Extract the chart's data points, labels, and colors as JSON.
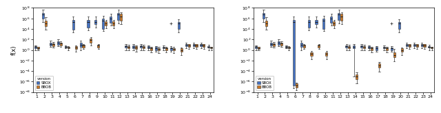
{
  "sbox_color": "#4472C4",
  "bbob_color": "#CC7722",
  "ylabel": "f(x)",
  "n_funcs": 24,
  "left_panel": {
    "sbox": {
      "med": [
        4,
        5000000.0,
        15,
        25,
        4,
        200000.0,
        10,
        200000.0,
        200000.0,
        400000.0,
        800000.0,
        5000000.0,
        5,
        4,
        5,
        3,
        2,
        3,
        2,
        100000.0,
        10,
        10,
        10,
        4
      ],
      "q1": [
        2,
        800000.0,
        8,
        10,
        3,
        8000.0,
        4,
        20000.0,
        80000.0,
        10000.0,
        150000.0,
        500000.0,
        3,
        2,
        3,
        2,
        1,
        2,
        1,
        10000.0,
        5,
        5,
        5,
        3
      ],
      "q3": [
        6,
        10000000.0,
        25,
        50,
        5,
        500000.0,
        25,
        500000.0,
        500000.0,
        800000.0,
        2500000.0,
        10000000.0,
        8,
        7,
        8,
        5,
        4,
        4,
        3,
        200000.0,
        15,
        15,
        15,
        6
      ],
      "whislo": [
        1,
        200000.0,
        4,
        5,
        2,
        2000.0,
        1,
        5000.0,
        20000.0,
        4000.0,
        40000.0,
        100000.0,
        1,
        1,
        1,
        1,
        0.5,
        1,
        0.5,
        2000.0,
        2,
        2,
        2,
        1
      ],
      "whishi": [
        8,
        50000000.0,
        60,
        100,
        7,
        2000000.0,
        60,
        2000000.0,
        2000000.0,
        3000000.0,
        8000000.0,
        50000000.0,
        15,
        15,
        12,
        8,
        6,
        7,
        5,
        600000.0,
        25,
        25,
        25,
        9
      ],
      "fliers_hi": [
        null,
        null,
        null,
        null,
        null,
        null,
        null,
        null,
        null,
        null,
        null,
        null,
        null,
        null,
        null,
        null,
        null,
        null,
        100000.0,
        null,
        null,
        null,
        null,
        null
      ],
      "fliers_lo": [
        null,
        null,
        null,
        null,
        null,
        null,
        null,
        null,
        null,
        null,
        null,
        null,
        null,
        null,
        null,
        null,
        null,
        null,
        null,
        null,
        null,
        null,
        null,
        null
      ]
    },
    "bbob": {
      "med": [
        2.5,
        100000.0,
        12,
        18,
        3,
        3,
        7,
        70,
        7,
        120000.0,
        120000.0,
        2500000.0,
        4,
        3,
        4,
        2,
        1.5,
        2,
        1.5,
        1,
        8,
        8,
        8,
        3
      ],
      "q1": [
        1.5,
        30000.0,
        6,
        8,
        2,
        1.5,
        3,
        25,
        3,
        40000.0,
        40000.0,
        400000.0,
        2,
        1.5,
        2,
        1,
        0.8,
        1,
        0.8,
        0.5,
        4,
        4,
        4,
        2
      ],
      "q3": [
        3.5,
        400000.0,
        18,
        28,
        4,
        5,
        10,
        150,
        10,
        250000.0,
        250000.0,
        7000000.0,
        6,
        5,
        6,
        3,
        2.5,
        3,
        2.5,
        2,
        12,
        12,
        12,
        4
      ],
      "whislo": [
        0.8,
        8000.0,
        3,
        4,
        1,
        0.5,
        1.5,
        8,
        1.5,
        15000.0,
        15000.0,
        80000.0,
        0.8,
        0.5,
        0.8,
        0.4,
        0.3,
        0.4,
        0.3,
        0.1,
        1.5,
        1.5,
        1.5,
        0.8
      ],
      "whishi": [
        4.5,
        1500000.0,
        30,
        50,
        5,
        8,
        15,
        300,
        15,
        500000.0,
        500000.0,
        15000000.0,
        9,
        7,
        9,
        4.5,
        3.5,
        4.5,
        3.5,
        3,
        15,
        15,
        15,
        4.5
      ],
      "fliers_hi": [
        null,
        null,
        null,
        null,
        null,
        null,
        null,
        null,
        null,
        null,
        null,
        null,
        null,
        null,
        null,
        null,
        null,
        null,
        null,
        null,
        null,
        null,
        null,
        null
      ],
      "fliers_lo": [
        null,
        null,
        null,
        null,
        null,
        null,
        null,
        null,
        null,
        null,
        null,
        null,
        null,
        null,
        null,
        null,
        null,
        null,
        null,
        null,
        null,
        null,
        null,
        null
      ]
    }
  },
  "right_panel": {
    "sbox": {
      "med": [
        4,
        5000000.0,
        15,
        25,
        4,
        200000.0,
        10,
        200000.0,
        200000.0,
        400000.0,
        800000.0,
        5000000.0,
        5,
        4,
        5,
        3,
        2,
        3,
        2,
        100000.0,
        10,
        10,
        10,
        4
      ],
      "q1": [
        2,
        800000.0,
        8,
        10,
        3,
        2e-07,
        4,
        20000.0,
        80000.0,
        10000.0,
        150000.0,
        500000.0,
        3,
        2,
        3,
        2,
        1,
        2,
        1,
        10000.0,
        5,
        5,
        5,
        3
      ],
      "q3": [
        6,
        10000000.0,
        25,
        50,
        5,
        500000.0,
        25,
        500000.0,
        500000.0,
        800000.0,
        2500000.0,
        10000000.0,
        8,
        7,
        8,
        5,
        4,
        4,
        3,
        200000.0,
        15,
        15,
        15,
        6
      ],
      "whislo": [
        1,
        200000.0,
        4,
        5,
        2,
        5e-08,
        1,
        5000.0,
        20000.0,
        4000.0,
        40000.0,
        100000.0,
        1,
        1e-05,
        1,
        1,
        0.5,
        1,
        0.5,
        2000.0,
        2,
        2,
        2,
        1
      ],
      "whishi": [
        8,
        50000000.0,
        60,
        100,
        7,
        2000000.0,
        60,
        2000000.0,
        2000000.0,
        3000000.0,
        8000000.0,
        50000000.0,
        15,
        15,
        12,
        8,
        6,
        7,
        5,
        600000.0,
        25,
        25,
        25,
        9
      ],
      "fliers_hi": [
        null,
        null,
        null,
        null,
        null,
        null,
        null,
        null,
        null,
        null,
        null,
        null,
        null,
        null,
        null,
        null,
        null,
        null,
        100000.0,
        null,
        null,
        null,
        null,
        null
      ],
      "fliers_lo": [
        null,
        null,
        null,
        null,
        null,
        null,
        null,
        null,
        null,
        null,
        null,
        null,
        null,
        null,
        null,
        null,
        null,
        null,
        null,
        null,
        null,
        null,
        null,
        null
      ]
    },
    "bbob": {
      "med": [
        2.5,
        100000.0,
        12,
        18,
        3,
        2e-07,
        7,
        0.2,
        7,
        0.2,
        120000.0,
        2500000.0,
        4,
        8e-06,
        4,
        2,
        0.0012,
        2,
        0.12,
        1,
        8,
        8,
        8,
        3
      ],
      "q1": [
        1.5,
        30000.0,
        6,
        8,
        2,
        8e-08,
        3,
        0.08,
        3,
        0.08,
        40000.0,
        400000.0,
        2,
        3e-06,
        2,
        1,
        0.0005,
        1,
        0.04,
        0.5,
        4,
        4,
        4,
        2
      ],
      "q3": [
        3.5,
        400000.0,
        18,
        28,
        4,
        4e-07,
        10,
        0.4,
        10,
        0.4,
        250000.0,
        7000000.0,
        6,
        2e-05,
        6,
        3,
        0.0025,
        3,
        0.4,
        2,
        12,
        12,
        12,
        4
      ],
      "whislo": [
        0.8,
        8000.0,
        3,
        4,
        1,
        2e-08,
        1.5,
        0.02,
        1.5,
        0.02,
        15000.0,
        80000.0,
        0.8,
        5e-07,
        0.8,
        0.4,
        8e-05,
        0.4,
        0.008,
        0.1,
        1.5,
        1.5,
        1.5,
        0.8
      ],
      "whishi": [
        4.5,
        1500000.0,
        30,
        50,
        5,
        6e-07,
        15,
        0.6,
        15,
        0.6,
        500000.0,
        15000000.0,
        9,
        6e-05,
        9,
        4.5,
        0.0045,
        4.5,
        1.5,
        3,
        15,
        15,
        15,
        4.5
      ],
      "fliers_hi": [
        null,
        null,
        null,
        null,
        null,
        null,
        null,
        null,
        null,
        null,
        null,
        null,
        null,
        null,
        null,
        null,
        null,
        null,
        null,
        null,
        null,
        null,
        null,
        null
      ],
      "fliers_lo": [
        null,
        null,
        null,
        null,
        null,
        null,
        null,
        null,
        null,
        null,
        null,
        null,
        null,
        null,
        null,
        null,
        null,
        null,
        null,
        null,
        null,
        null,
        null,
        null
      ]
    }
  }
}
